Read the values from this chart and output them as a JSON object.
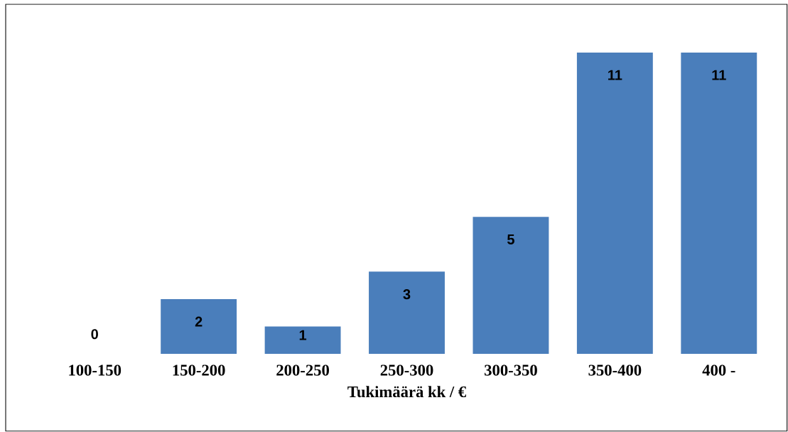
{
  "chart_data": {
    "type": "bar",
    "xlabel": "Tukimäärä kk / €",
    "categories": [
      "100-150",
      "150-200",
      "200-250",
      "250-300",
      "300-350",
      "350-400",
      "400 -"
    ],
    "values": [
      0,
      2,
      1,
      3,
      5,
      11,
      11
    ],
    "color": "#4a7ebb",
    "data_labels": true
  }
}
